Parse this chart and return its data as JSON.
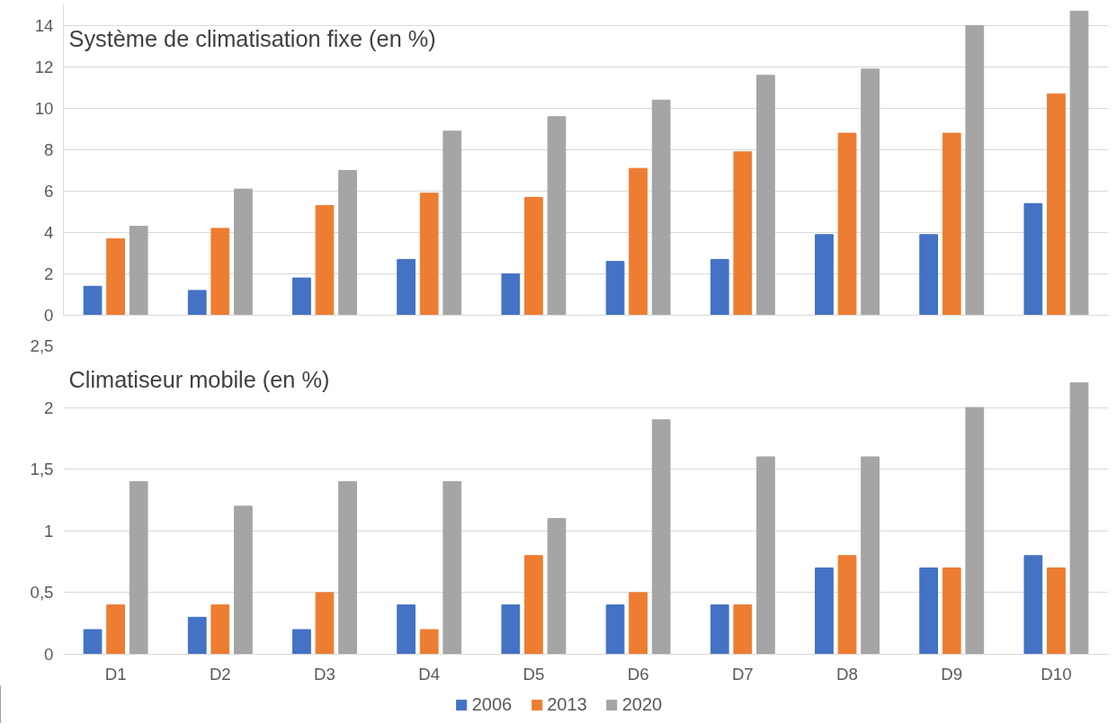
{
  "chart_data": [
    {
      "type": "bar",
      "title": "Système de climatisation fixe (en %)",
      "categories": [
        null,
        null,
        null,
        null,
        null,
        null,
        null,
        null,
        null,
        null
      ],
      "series": [
        {
          "color": "#4472c4",
          "values": [
            1.4,
            1.2,
            1.8,
            2.7,
            2.0,
            2.6,
            2.7,
            3.9,
            3.9,
            5.4
          ]
        },
        {
          "color": "#ed7d31",
          "values": [
            3.7,
            4.2,
            5.3,
            5.9,
            5.7,
            7.1,
            7.9,
            8.8,
            8.8,
            10.7
          ]
        },
        {
          "color": "#a5a5a5",
          "values": [
            4.3,
            6.1,
            7.0,
            8.9,
            9.6,
            10.4,
            11.6,
            11.9,
            14.0,
            14.7
          ]
        }
      ],
      "ylim": [
        0,
        15
      ],
      "yticks": [
        0,
        2,
        4,
        6,
        8,
        10,
        12,
        14
      ],
      "grid": "y",
      "tick_labels": "y"
    },
    {
      "type": "bar",
      "title": "Climatiseur mobile (en %)",
      "categories": [
        "D1",
        "D2",
        "D3",
        "D4",
        "D5",
        "D6",
        "D7",
        "D8",
        "D9",
        "D10"
      ],
      "series": [
        {
          "name": "2006",
          "color": "#4472c4",
          "values": [
            0.2,
            0.3,
            0.2,
            0.4,
            0.4,
            0.4,
            0.4,
            0.7,
            0.7,
            0.8
          ]
        },
        {
          "name": "2013",
          "color": "#ed7d31",
          "values": [
            0.4,
            0.4,
            0.5,
            0.2,
            0.8,
            0.5,
            0.4,
            0.8,
            0.7,
            0.7
          ]
        },
        {
          "name": "2020",
          "color": "#a5a5a5",
          "values": [
            1.4,
            1.2,
            1.4,
            1.4,
            1.1,
            1.9,
            1.6,
            1.6,
            2.0,
            2.2
          ]
        }
      ],
      "ylim": [
        0,
        2.5
      ],
      "yticks": [
        0,
        {
          "value": 0.5,
          "label": "0,5"
        },
        1,
        {
          "value": 1.5,
          "label": "1,5"
        },
        2,
        {
          "value": 2.5,
          "label": "2,5"
        }
      ],
      "grid": "y",
      "legend": "bottom"
    }
  ]
}
